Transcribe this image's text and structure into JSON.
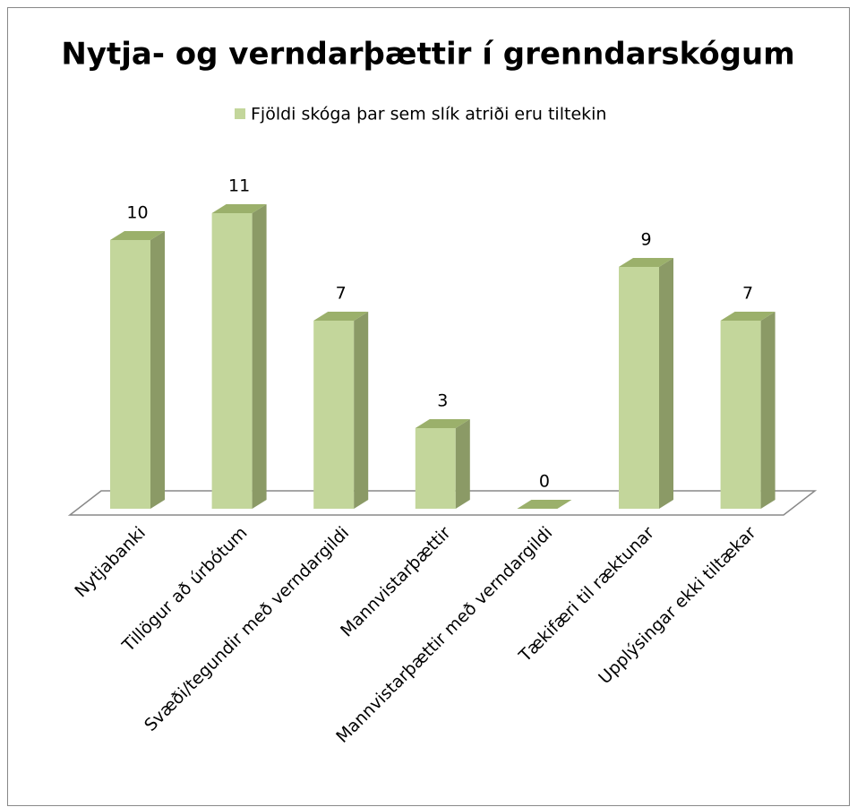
{
  "chart_data": {
    "type": "bar3d",
    "title": "Nytja- og verndarþættir í grenndarskógum",
    "categories": [
      "Nytjabanki",
      "Tillögur að úrbótum",
      "Svæði/tegundir með verndargildi",
      "Mannvistarþættir",
      "Mannvistarþættir með verndargildi",
      "Tækifæri til ræktunar",
      "Upplýsingar ekki tiltækar"
    ],
    "series": [
      {
        "name": "Fjöldi skóga þar sem slík atriði eru tiltekin",
        "color": "#c3d69b",
        "values": [
          10,
          11,
          7,
          3,
          0,
          9,
          7
        ]
      }
    ],
    "legend": "top"
  }
}
